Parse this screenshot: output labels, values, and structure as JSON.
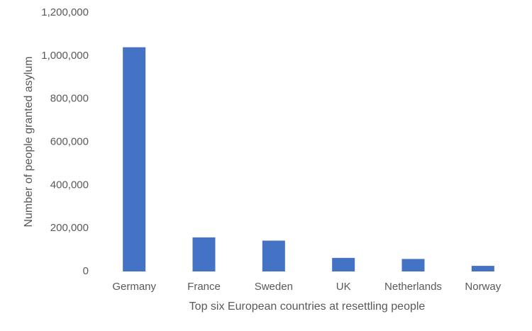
{
  "chart_data": {
    "type": "bar",
    "title": "",
    "xlabel": "Top six European countries at resettling people",
    "ylabel": "Number of people granted asylum",
    "categories": [
      "Germany",
      "France",
      "Sweden",
      "UK",
      "Netherlands",
      "Norway"
    ],
    "values": [
      1040000,
      158000,
      143000,
      63000,
      58000,
      26000
    ],
    "ylim": [
      0,
      1200000
    ],
    "yticks": [
      0,
      200000,
      400000,
      600000,
      800000,
      1000000,
      1200000
    ],
    "ytick_labels": [
      "0",
      "200,000",
      "400,000",
      "600,000",
      "800,000",
      "1,000,000",
      "1,200,000"
    ],
    "grid": false,
    "legend": "none",
    "bar_color": "#4472C4",
    "text_color": "#595959"
  }
}
